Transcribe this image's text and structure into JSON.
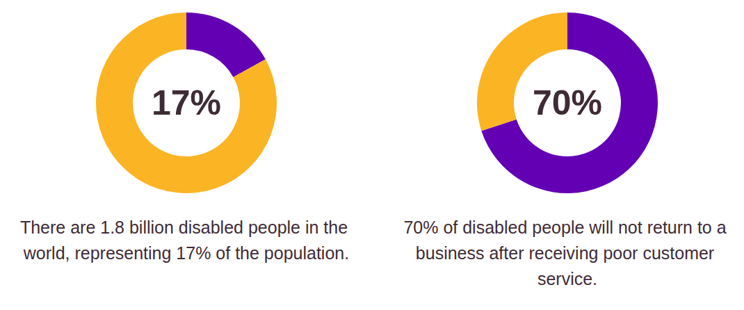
{
  "chart_data": [
    {
      "type": "pie",
      "annotations": [
        "There are 1.8 billion disabled people in the world, representing 17% of the population."
      ],
      "values": [
        17,
        83
      ],
      "value_labels": [
        "17%",
        null
      ],
      "colors": [
        "#6400b4",
        "#fbb424"
      ]
    },
    {
      "type": "pie",
      "annotations": [
        "70% of disabled people will not return to a business after receiving poor customer service."
      ],
      "values": [
        70,
        30
      ],
      "value_labels": [
        "70%",
        null
      ],
      "colors": [
        "#6400b4",
        "#fbb424"
      ]
    }
  ]
}
